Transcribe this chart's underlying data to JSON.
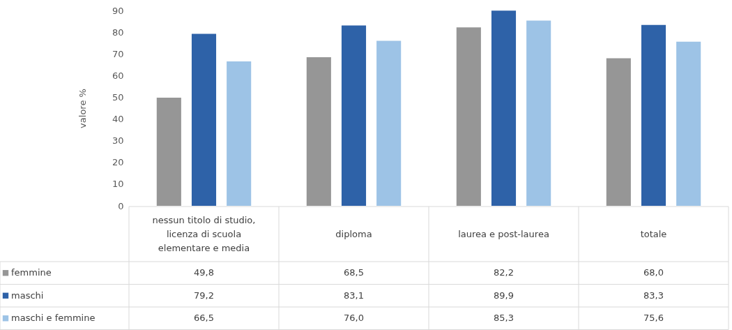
{
  "chart_data": {
    "type": "bar",
    "ylabel": "valore %",
    "categories": [
      "nessun titolo di studio, licenza di scuola elementare e media",
      "diploma",
      "laurea e post-laurea",
      "totale"
    ],
    "series": [
      {
        "name": "femmine",
        "color": "#969696",
        "values": [
          49.8,
          68.5,
          82.2,
          68.0
        ],
        "value_labels": [
          "49,8",
          "68,5",
          "82,2",
          "68,0"
        ]
      },
      {
        "name": "maschi",
        "color": "#2e62a8",
        "values": [
          79.2,
          83.1,
          89.9,
          83.3
        ],
        "value_labels": [
          "79,2",
          "83,1",
          "89,9",
          "83,3"
        ]
      },
      {
        "name": "maschi e femmine",
        "color": "#9dc3e6",
        "values": [
          66.5,
          76.0,
          85.3,
          75.6
        ],
        "value_labels": [
          "66,5",
          "76,0",
          "85,3",
          "75,6"
        ]
      }
    ],
    "ylim": [
      0,
      90
    ],
    "yticks": [
      0,
      10,
      20,
      30,
      40,
      50,
      60,
      70,
      80,
      90
    ],
    "legend": "bottom"
  }
}
